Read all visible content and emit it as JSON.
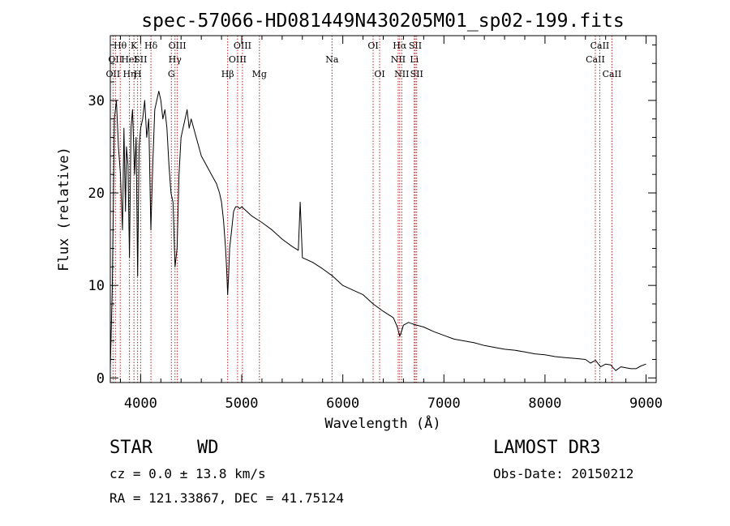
{
  "chart_data": {
    "type": "line",
    "title": "spec-57066-HD081449N430205M01_sp02-199.fits",
    "xlabel": "Wavelength (Å)",
    "ylabel": "Flux (relative)",
    "xlim": [
      3700,
      9100
    ],
    "ylim": [
      -0.5,
      37
    ],
    "xticks": [
      4000,
      5000,
      6000,
      7000,
      8000,
      9000
    ],
    "yticks": [
      0,
      10,
      20,
      30
    ],
    "grid": false,
    "series": [
      {
        "name": "flux",
        "x": [
          3700,
          3720,
          3740,
          3760,
          3780,
          3800,
          3820,
          3835,
          3850,
          3860,
          3875,
          3889,
          3905,
          3920,
          3940,
          3955,
          3970,
          3985,
          4000,
          4020,
          4040,
          4060,
          4080,
          4101,
          4120,
          4140,
          4160,
          4180,
          4200,
          4220,
          4240,
          4260,
          4280,
          4300,
          4320,
          4340,
          4360,
          4380,
          4400,
          4420,
          4440,
          4460,
          4480,
          4500,
          4550,
          4600,
          4650,
          4700,
          4750,
          4780,
          4800,
          4820,
          4840,
          4850,
          4861,
          4870,
          4880,
          4900,
          4920,
          4940,
          4960,
          4980,
          5000,
          5050,
          5100,
          5200,
          5300,
          5400,
          5500,
          5560,
          5578,
          5600,
          5700,
          5800,
          5900,
          6000,
          6100,
          6200,
          6300,
          6400,
          6500,
          6540,
          6563,
          6580,
          6600,
          6650,
          6700,
          6800,
          6900,
          7000,
          7100,
          7200,
          7300,
          7400,
          7500,
          7600,
          7700,
          7800,
          7900,
          8000,
          8100,
          8200,
          8300,
          8400,
          8450,
          8500,
          8550,
          8600,
          8650,
          8700,
          8750,
          8800,
          8850,
          8900,
          8950,
          9000
        ],
        "y": [
          1,
          10,
          28,
          30,
          25,
          22,
          16,
          27,
          18,
          25,
          23,
          13,
          27,
          29,
          22,
          26,
          11,
          25,
          27,
          28,
          30,
          26,
          28,
          16,
          23,
          29,
          30,
          31,
          30,
          28,
          29,
          27,
          23,
          20,
          19,
          12,
          14,
          22,
          26,
          27,
          28,
          29,
          27,
          28,
          26,
          24,
          23,
          22,
          21,
          20,
          19,
          17,
          14,
          12,
          9,
          11,
          14,
          16,
          18,
          18.5,
          18.5,
          18.3,
          18.5,
          18,
          17.5,
          16.8,
          16,
          15,
          14.2,
          13.8,
          19,
          13,
          12.5,
          11.8,
          11,
          10,
          9.5,
          9,
          8,
          7.2,
          6.5,
          5.5,
          4.5,
          5,
          5.7,
          6,
          5.8,
          5.5,
          5,
          4.6,
          4.2,
          4,
          3.8,
          3.5,
          3.3,
          3.1,
          3,
          2.8,
          2.6,
          2.5,
          2.3,
          2.2,
          2.1,
          2,
          1.6,
          1.9,
          1.2,
          1.5,
          1.4,
          0.8,
          1.2,
          1.1,
          1,
          1,
          1.3,
          1.5
        ]
      }
    ],
    "line_markers": [
      {
        "x": 3727,
        "label": "OII",
        "row": 2
      },
      {
        "x": 3750,
        "label": "OII",
        "row": 1
      },
      {
        "x": 3798,
        "label": "Hθ",
        "row": 0
      },
      {
        "x": 3889,
        "label": "Hη",
        "row": 2
      },
      {
        "x": 3889,
        "label": "HeI",
        "row": 1
      },
      {
        "x": 3934,
        "label": "K",
        "row": 0
      },
      {
        "x": 3970,
        "label": "H",
        "row": 2
      },
      {
        "x": 4000,
        "label": "SII",
        "row": 1
      },
      {
        "x": 4102,
        "label": "Hδ",
        "row": 0
      },
      {
        "x": 4304,
        "label": "G",
        "row": 2
      },
      {
        "x": 4340,
        "label": "Hγ",
        "row": 1
      },
      {
        "x": 4363,
        "label": "OIII",
        "row": 0
      },
      {
        "x": 4861,
        "label": "Hβ",
        "row": 2
      },
      {
        "x": 4959,
        "label": "OIII",
        "row": 1
      },
      {
        "x": 5007,
        "label": "OIII",
        "row": 0
      },
      {
        "x": 5175,
        "label": "Mg",
        "row": 2
      },
      {
        "x": 5893,
        "label": "Na",
        "row": 1
      },
      {
        "x": 6300,
        "label": "OI",
        "row": 0
      },
      {
        "x": 6364,
        "label": "OI",
        "row": 2
      },
      {
        "x": 6548,
        "label": "NII",
        "row": 1
      },
      {
        "x": 6563,
        "label": "Hα",
        "row": 0
      },
      {
        "x": 6583,
        "label": "NII",
        "row": 2
      },
      {
        "x": 6707,
        "label": "Li",
        "row": 1
      },
      {
        "x": 6717,
        "label": "SII",
        "row": 0
      },
      {
        "x": 6731,
        "label": "SII",
        "row": 2
      },
      {
        "x": 8498,
        "label": "CaII",
        "row": 1
      },
      {
        "x": 8542,
        "label": "CaII",
        "row": 0
      },
      {
        "x": 8662,
        "label": "CaII",
        "row": 2
      }
    ]
  },
  "info": {
    "object_class": "STAR",
    "subclass": "WD",
    "survey": "LAMOST DR3",
    "redshift": "cz = 0.0 ± 13.8 km/s",
    "obs_date": "Obs-Date: 20150212",
    "coords": "RA = 121.33867, DEC =  41.75124"
  }
}
